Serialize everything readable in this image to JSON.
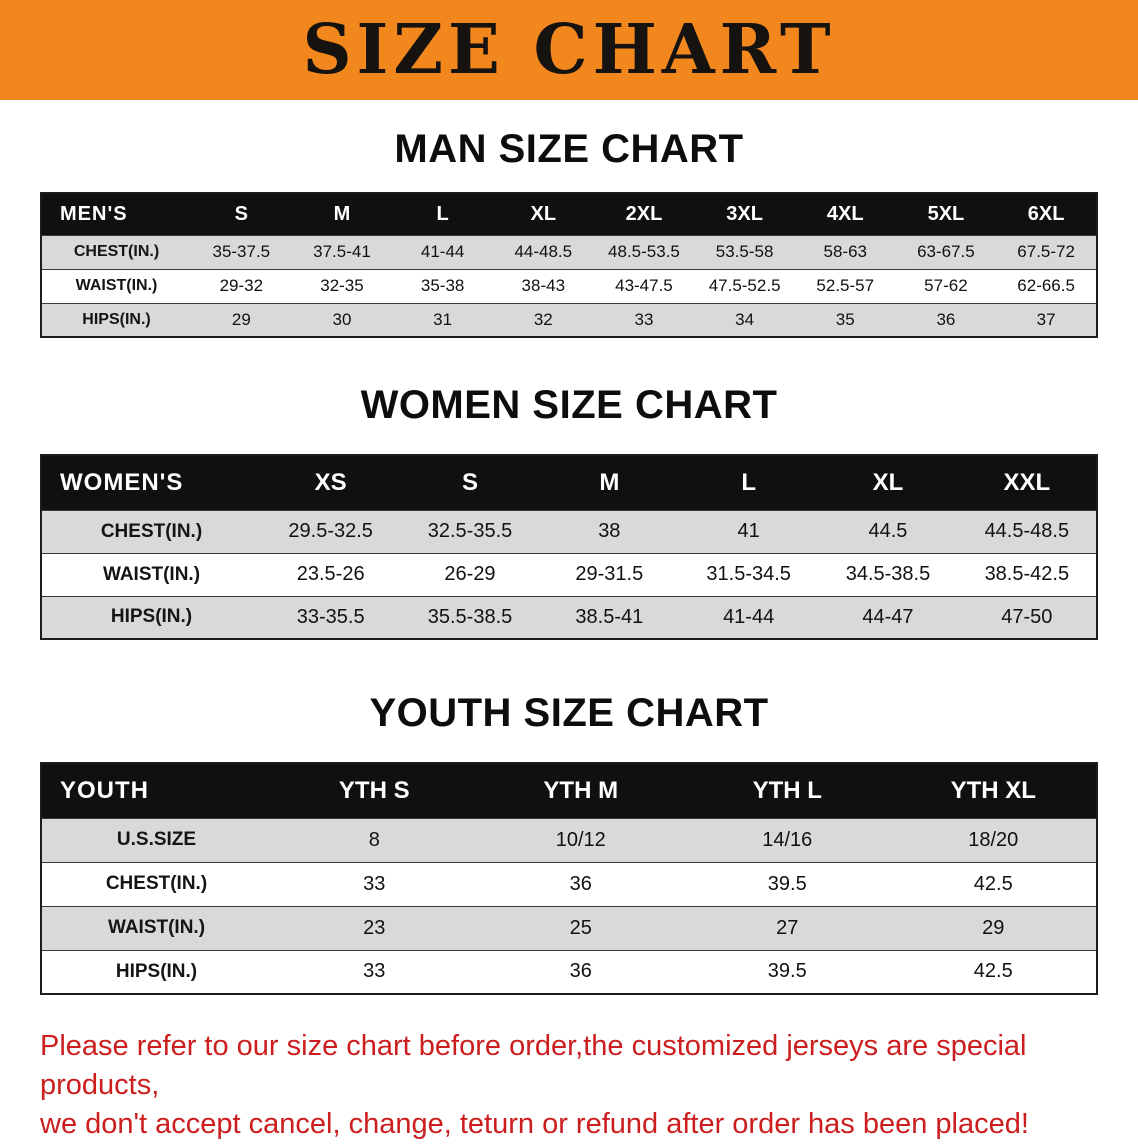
{
  "theme": {
    "banner_bg": "#f2871d",
    "header_bg": "#101010",
    "stripe": "#d9d9d9",
    "disclaimer_red": "#cc1e1e"
  },
  "banner": {
    "title": "SIZE CHART"
  },
  "men": {
    "heading": "MAN SIZE CHART",
    "table": {
      "corner": "MEN'S",
      "columns": [
        "S",
        "M",
        "L",
        "XL",
        "2XL",
        "3XL",
        "4XL",
        "5XL",
        "6XL"
      ],
      "rows": [
        {
          "label": "CHEST(IN.)",
          "values": [
            "35-37.5",
            "37.5-41",
            "41-44",
            "44-48.5",
            "48.5-53.5",
            "53.5-58",
            "58-63",
            "63-67.5",
            "67.5-72"
          ]
        },
        {
          "label": "WAIST(IN.)",
          "values": [
            "29-32",
            "32-35",
            "35-38",
            "38-43",
            "43-47.5",
            "47.5-52.5",
            "52.5-57",
            "57-62",
            "62-66.5"
          ]
        },
        {
          "label": "HIPS(IN.)",
          "values": [
            "29",
            "30",
            "31",
            "32",
            "33",
            "34",
            "35",
            "36",
            "37"
          ]
        }
      ]
    }
  },
  "women": {
    "heading": "WOMEN SIZE CHART",
    "table": {
      "corner": "WOMEN'S",
      "columns": [
        "XS",
        "S",
        "M",
        "L",
        "XL",
        "XXL"
      ],
      "rows": [
        {
          "label": "CHEST(IN.)",
          "values": [
            "29.5-32.5",
            "32.5-35.5",
            "38",
            "41",
            "44.5",
            "44.5-48.5"
          ]
        },
        {
          "label": "WAIST(IN.)",
          "values": [
            "23.5-26",
            "26-29",
            "29-31.5",
            "31.5-34.5",
            "34.5-38.5",
            "38.5-42.5"
          ]
        },
        {
          "label": "HIPS(IN.)",
          "values": [
            "33-35.5",
            "35.5-38.5",
            "38.5-41",
            "41-44",
            "44-47",
            "47-50"
          ]
        }
      ]
    }
  },
  "youth": {
    "heading": "YOUTH SIZE CHART",
    "table": {
      "corner": "YOUTH",
      "columns": [
        "YTH S",
        "YTH M",
        "YTH L",
        "YTH XL"
      ],
      "rows": [
        {
          "label": "U.S.SIZE",
          "values": [
            "8",
            "10/12",
            "14/16",
            "18/20"
          ]
        },
        {
          "label": "CHEST(IN.)",
          "values": [
            "33",
            "36",
            "39.5",
            "42.5"
          ]
        },
        {
          "label": "WAIST(IN.)",
          "values": [
            "23",
            "25",
            "27",
            "29"
          ]
        },
        {
          "label": "HIPS(IN.)",
          "values": [
            "33",
            "36",
            "39.5",
            "42.5"
          ]
        }
      ]
    }
  },
  "disclaimer": {
    "line1": "Please refer to our size chart before order,the customized jerseys are special products,",
    "line2": "we don't accept cancel, change, teturn or refund after order has been placed!"
  }
}
